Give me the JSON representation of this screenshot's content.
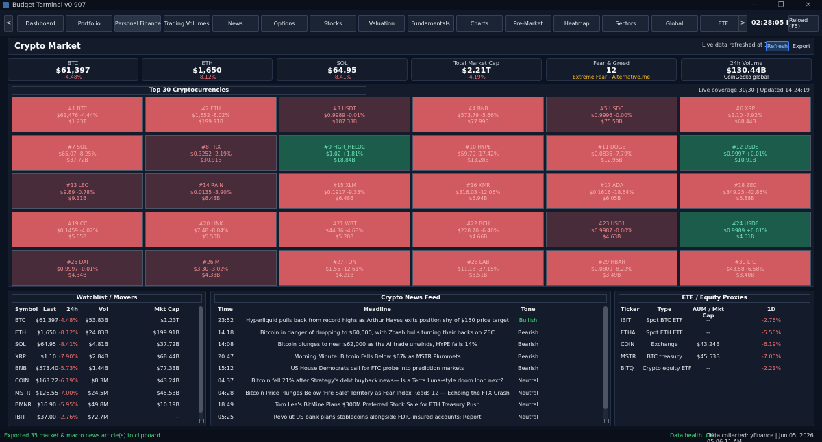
{
  "window": {
    "title": "Budget Terminal v0.907"
  },
  "nav": {
    "prev": "<",
    "next": ">",
    "tabs": [
      "Dashboard",
      "Portfolio",
      "Personal Finance",
      "Trading Volumes",
      "News",
      "Options",
      "Stocks",
      "Valuation",
      "Fundamentals",
      "Charts",
      "Pre-Market",
      "Heatmap",
      "Sectors",
      "Global",
      "ETF"
    ],
    "active_tab": "Personal Finance",
    "clock": "02:28:05 PM",
    "reload": "Reload (F5)"
  },
  "header": {
    "title": "Crypto Market",
    "refreshed": "Live data refreshed at 14:24:19",
    "refresh": "Refresh",
    "export": "Export"
  },
  "cards": [
    {
      "label": "BTC",
      "value": "$61,397",
      "sub": "-4.48%"
    },
    {
      "label": "ETH",
      "value": "$1,650",
      "sub": "-8.12%"
    },
    {
      "label": "SOL",
      "value": "$64.95",
      "sub": "-8.41%"
    },
    {
      "label": "Total Market Cap",
      "value": "$2.21T",
      "sub": "-4.19%"
    },
    {
      "label": "Fear & Greed",
      "value": "12",
      "sub": "Extreme Fear - Alternative.me"
    },
    {
      "label": "24h Volume",
      "value": "$130.44B",
      "sub": "CoinGecko global"
    }
  ],
  "heatmap": {
    "title": "Top 30 Cryptocurrencies",
    "coverage": "Live coverage 30/30 | Updated 14:24:19",
    "tiles": [
      {
        "name": "#1 BTC",
        "line": "$61,476 -4.44%",
        "cap": "$1.23T",
        "tone": "red"
      },
      {
        "name": "#2 ETH",
        "line": "$1,652 -8.02%",
        "cap": "$199.91B",
        "tone": "red"
      },
      {
        "name": "#3 USDT",
        "line": "$0.9989 -0.01%",
        "cap": "$187.33B",
        "tone": "dark"
      },
      {
        "name": "#4 BNB",
        "line": "$573.79 -5.66%",
        "cap": "$77.99B",
        "tone": "red"
      },
      {
        "name": "#5 USDC",
        "line": "$0.9996 -0.00%",
        "cap": "$75.58B",
        "tone": "dark"
      },
      {
        "name": "#6 XRP",
        "line": "$1.10 -7.92%",
        "cap": "$68.44B",
        "tone": "red"
      },
      {
        "name": "#7 SOL",
        "line": "$65.07 -8.25%",
        "cap": "$37.72B",
        "tone": "red"
      },
      {
        "name": "#8 TRX",
        "line": "$0.3252 -2.19%",
        "cap": "$30.91B",
        "tone": "dark"
      },
      {
        "name": "#9 FIGR_HELOC",
        "line": "$1.02 +1.81%",
        "cap": "$18.84B",
        "tone": "green"
      },
      {
        "name": "#10 HYPE",
        "line": "$59.70 -17.42%",
        "cap": "$13.28B",
        "tone": "red"
      },
      {
        "name": "#11 DOGE",
        "line": "$0.0836 -7.79%",
        "cap": "$12.95B",
        "tone": "red"
      },
      {
        "name": "#12 USDS",
        "line": "$0.9997 +0.01%",
        "cap": "$10.91B",
        "tone": "green"
      },
      {
        "name": "#13 LEO",
        "line": "$9.89 -0.78%",
        "cap": "$9.11B",
        "tone": "dark"
      },
      {
        "name": "#14 RAIN",
        "line": "$0.0135 -3.90%",
        "cap": "$8.43B",
        "tone": "dark"
      },
      {
        "name": "#15 XLM",
        "line": "$0.1917 -9.35%",
        "cap": "$6.48B",
        "tone": "red"
      },
      {
        "name": "#16 XMR",
        "line": "$316.03 -12.06%",
        "cap": "$5.94B",
        "tone": "red"
      },
      {
        "name": "#17 ADA",
        "line": "$0.1616 -18.64%",
        "cap": "$6.05B",
        "tone": "red"
      },
      {
        "name": "#18 ZEC",
        "line": "$349.25 -42.86%",
        "cap": "$5.88B",
        "tone": "red"
      },
      {
        "name": "#19 CC",
        "line": "$0.1459 -4.02%",
        "cap": "$5.65B",
        "tone": "red"
      },
      {
        "name": "#20 LINK",
        "line": "$7.48 -8.84%",
        "cap": "$5.50B",
        "tone": "red"
      },
      {
        "name": "#21 WBT",
        "line": "$44.36 -4.68%",
        "cap": "$5.28B",
        "tone": "red"
      },
      {
        "name": "#22 BCH",
        "line": "$228.70 -6.40%",
        "cap": "$4.66B",
        "tone": "red"
      },
      {
        "name": "#23 USD1",
        "line": "$0.9987 -0.00%",
        "cap": "$4.63B",
        "tone": "dark"
      },
      {
        "name": "#24 USDE",
        "line": "$0.9989 +0.01%",
        "cap": "$4.51B",
        "tone": "green"
      },
      {
        "name": "#25 DAI",
        "line": "$0.9997 -0.01%",
        "cap": "$4.34B",
        "tone": "dark"
      },
      {
        "name": "#26 M",
        "line": "$3.30 -3.02%",
        "cap": "$4.33B",
        "tone": "dark"
      },
      {
        "name": "#27 TON",
        "line": "$1.55 -12.61%",
        "cap": "$4.21B",
        "tone": "red"
      },
      {
        "name": "#28 LAB",
        "line": "$11.13 -37.15%",
        "cap": "$3.51B",
        "tone": "red"
      },
      {
        "name": "#29 HBAR",
        "line": "$0.0800 -8.22%",
        "cap": "$3.49B",
        "tone": "red"
      },
      {
        "name": "#30 LTC",
        "line": "$43.58 -6.58%",
        "cap": "$3.40B",
        "tone": "red"
      }
    ]
  },
  "watchlist": {
    "title": "Watchlist / Movers",
    "columns": [
      "Symbol",
      "Last",
      "24h",
      "Vol",
      "Mkt Cap"
    ],
    "rows": [
      [
        "BTC",
        "$61,397",
        "-4.48%",
        "$53.83B",
        "$1.23T"
      ],
      [
        "ETH",
        "$1,650",
        "-8.12%",
        "$24.83B",
        "$199.91B"
      ],
      [
        "SOL",
        "$64.95",
        "-8.41%",
        "$4.81B",
        "$37.72B"
      ],
      [
        "XRP",
        "$1.10",
        "-7.90%",
        "$2.84B",
        "$68.44B"
      ],
      [
        "BNB",
        "$573.40",
        "-5.73%",
        "$1.44B",
        "$77.33B"
      ],
      [
        "COIN",
        "$163.22",
        "-6.19%",
        "$8.3M",
        "$43.24B"
      ],
      [
        "MSTR",
        "$126.55",
        "-7.00%",
        "$24.5M",
        "$45.53B"
      ],
      [
        "BMNR",
        "$16.90",
        "-5.95%",
        "$49.8M",
        "$10.19B"
      ],
      [
        "IBIT",
        "$37.00",
        "-2.76%",
        "$72.7M",
        "--"
      ]
    ]
  },
  "news": {
    "title": "Crypto News Feed",
    "columns": [
      "Time",
      "Headline",
      "Tone"
    ],
    "rows": [
      [
        "23:52",
        "Hyperliquid pulls back from record highs as Arthur Hayes exits position shy of $150 price target",
        "Bullish"
      ],
      [
        "14:18",
        "Bitcoin in danger of dropping to $60,000, with Zcash bulls turning their backs on ZEC",
        "Bearish"
      ],
      [
        "14:08",
        "Bitcoin plunges to near $62,000 as the AI trade unwinds, HYPE falls 14%",
        "Bearish"
      ],
      [
        "20:47",
        "Morning Minute: Bitcoin Falls Below $67k as MSTR Plummets",
        "Bearish"
      ],
      [
        "15:12",
        "US House Democrats call for FTC probe into prediction markets",
        "Bearish"
      ],
      [
        "04:37",
        "Bitcoin fell 21% after Strategy's debt buyback news— Is a Terra Luna-style doom loop next?",
        "Neutral"
      ],
      [
        "04:28",
        "Bitcoin Price Plunges Below 'Fire Sale' Territory as Fear Index Reads 12 — Echoing the FTX Crash",
        "Neutral"
      ],
      [
        "18:49",
        "Tom Lee's BitMine Plans $300M Preferred Stock Sale for ETH Treasury Push",
        "Neutral"
      ],
      [
        "05:25",
        "Revolut US bank plans stablecoins alongside FDIC-insured accounts: Report",
        "Neutral"
      ]
    ]
  },
  "etf": {
    "title": "ETF / Equity Proxies",
    "columns": [
      "Ticker",
      "Type",
      "AUM / Mkt Cap",
      "1D"
    ],
    "rows": [
      [
        "IBIT",
        "Spot BTC ETF",
        "--",
        "-2.76%"
      ],
      [
        "ETHA",
        "Spot ETH ETF",
        "--",
        "-5.56%"
      ],
      [
        "COIN",
        "Exchange",
        "$43.24B",
        "-6.19%"
      ],
      [
        "MSTR",
        "BTC treasury",
        "$45.53B",
        "-7.00%"
      ],
      [
        "BITQ",
        "Crypto equity ETF",
        "--",
        "-2.21%"
      ]
    ]
  },
  "status": {
    "left": "Exported 35 market & macro news article(s) to clipboard",
    "health": "Data health: OK",
    "right": "Data collected: yfinance | Jun 05, 2026 05:06:11 AM"
  },
  "colors": {
    "bg": "#0b1220",
    "negative": "#f87171",
    "positive": "#4ade80",
    "tile_red": "#d05a5f",
    "tile_dark": "#492c3a",
    "tile_green": "#1b5c4a"
  }
}
